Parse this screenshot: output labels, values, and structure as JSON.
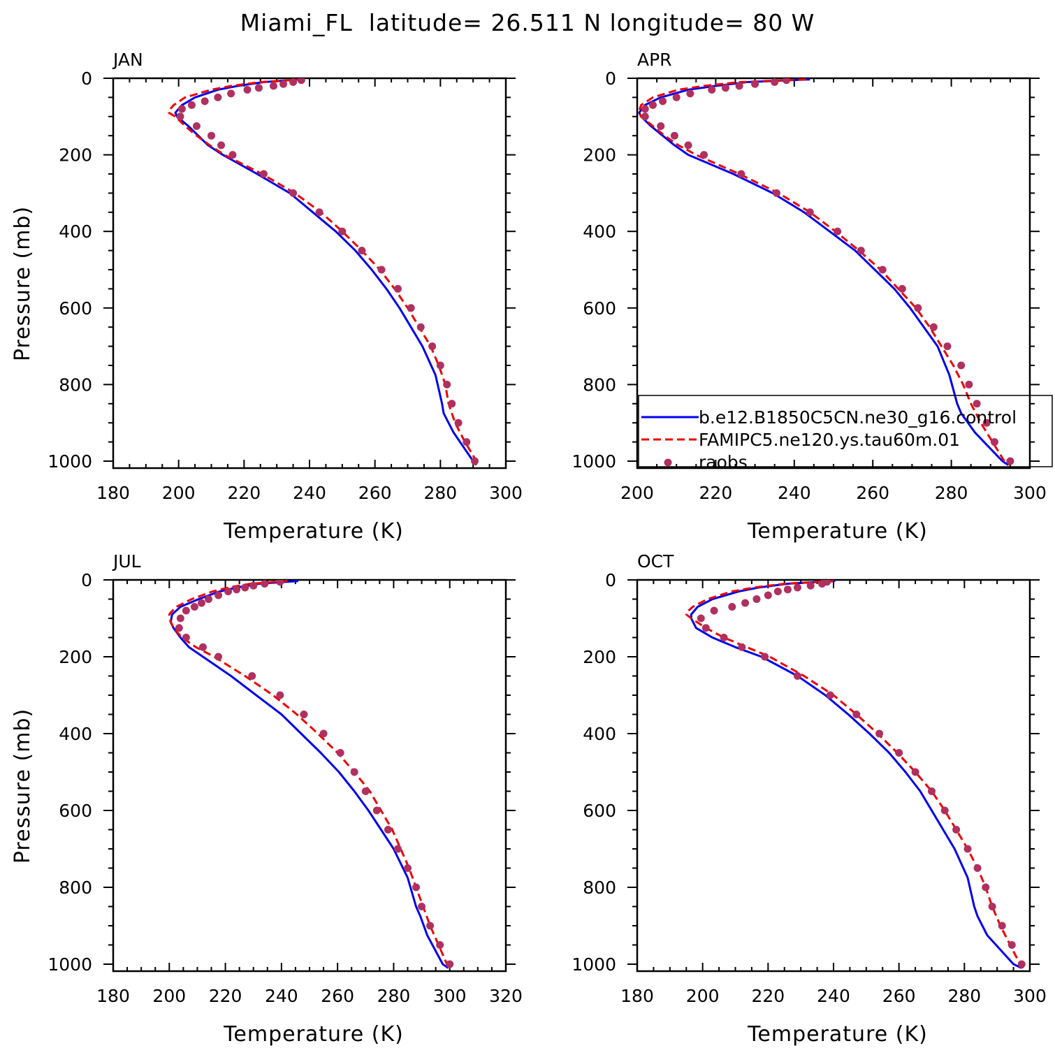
{
  "figure": {
    "title": "Miami_FL  latitude= 26.511 N longitude= 80 W"
  },
  "colors": {
    "model1": "#0000ee",
    "model2": "#ee0000",
    "obs": "#b03060"
  },
  "chart_data": [
    {
      "type": "line",
      "panel": "JAN",
      "xlabel": "Temperature (K)",
      "ylabel": "Pressure (mb)",
      "xlim": [
        180,
        300
      ],
      "ylim": [
        1000,
        0
      ],
      "xticks": [
        180,
        200,
        220,
        240,
        260,
        280,
        300
      ],
      "yticks": [
        0,
        200,
        400,
        600,
        800,
        1000
      ],
      "legend": null,
      "series": [
        {
          "name": "b.e12.B1850C5CN.ne30_g16.control",
          "style": "solid",
          "pressure": [
            3,
            10,
            20,
            30,
            50,
            70,
            90,
            100,
            125,
            150,
            175,
            200,
            250,
            300,
            350,
            400,
            450,
            500,
            550,
            600,
            650,
            700,
            775,
            850,
            875,
            925,
            1000,
            1010
          ],
          "temperature": [
            237.5,
            226,
            218,
            212,
            205,
            201,
            199,
            199.5,
            203,
            206,
            209,
            213.5,
            224,
            234,
            241,
            248,
            254,
            259,
            263.5,
            267.5,
            271,
            274.5,
            278.5,
            280.5,
            281,
            284,
            290,
            291
          ]
        },
        {
          "name": "FAMIPC5.ne120.ys.tau60m.01",
          "style": "dashed",
          "pressure": [
            3,
            10,
            20,
            30,
            50,
            70,
            85,
            90,
            100,
            125,
            150,
            175,
            200,
            250,
            300,
            350,
            400,
            450,
            500,
            550,
            600,
            650,
            700,
            750,
            800,
            850,
            900,
            950,
            1000,
            1010
          ],
          "temperature": [
            238,
            225,
            216,
            210,
            202,
            198.5,
            197,
            197,
            199,
            202,
            205.5,
            209.5,
            214,
            225.5,
            235.5,
            243.5,
            250,
            256,
            261.5,
            266,
            270,
            273.5,
            277,
            279.5,
            281.5,
            282.5,
            284.5,
            287.5,
            291,
            292
          ]
        },
        {
          "name": "raobs",
          "style": "points",
          "pressure": [
            5,
            10,
            15,
            20,
            25,
            30,
            40,
            50,
            60,
            70,
            80,
            100,
            125,
            150,
            175,
            200,
            250,
            300,
            350,
            400,
            450,
            500,
            550,
            600,
            650,
            700,
            750,
            800,
            850,
            900,
            950,
            1000
          ],
          "temperature": [
            237.5,
            235,
            232,
            229,
            224.5,
            221,
            216,
            212,
            208,
            204,
            201,
            200.5,
            205.5,
            210,
            213,
            216.5,
            226,
            235,
            243,
            250,
            256,
            262,
            267,
            271,
            274,
            277.5,
            280,
            282,
            283.5,
            285.5,
            288,
            290.5
          ]
        }
      ]
    },
    {
      "type": "line",
      "panel": "APR",
      "xlabel": "Temperature (K)",
      "ylabel": "",
      "xlim": [
        200,
        300
      ],
      "ylim": [
        1000,
        0
      ],
      "xticks": [
        200,
        220,
        240,
        260,
        280,
        300
      ],
      "yticks": [
        0,
        200,
        400,
        600,
        800,
        1000
      ],
      "legend": "lower-right",
      "series": [
        {
          "name": "b.e12.B1850C5CN.ne30_g16.control",
          "style": "solid",
          "pressure": [
            3,
            10,
            20,
            30,
            50,
            70,
            90,
            100,
            125,
            150,
            175,
            200,
            250,
            300,
            350,
            400,
            450,
            500,
            550,
            600,
            650,
            700,
            775,
            850,
            875,
            925,
            1000,
            1010
          ],
          "temperature": [
            244,
            228,
            220,
            213,
            206,
            202,
            200.5,
            201,
            203.5,
            206.5,
            209.5,
            213,
            224.5,
            234.5,
            242.5,
            249,
            255.5,
            260.5,
            265.5,
            269.5,
            273,
            276.5,
            279.5,
            281.5,
            282.5,
            286,
            293,
            294.5
          ]
        },
        {
          "name": "FAMIPC5.ne120.ys.tau60m.01",
          "style": "dashed",
          "pressure": [
            3,
            10,
            20,
            30,
            50,
            70,
            85,
            90,
            100,
            125,
            150,
            175,
            200,
            250,
            300,
            350,
            400,
            450,
            500,
            550,
            600,
            650,
            700,
            750,
            800,
            850,
            900,
            950,
            1000,
            1010
          ],
          "temperature": [
            243,
            226,
            217,
            210.5,
            204,
            201,
            200.5,
            200.5,
            201,
            204,
            207,
            210.5,
            215,
            226,
            236,
            244,
            250.5,
            256.5,
            262,
            266.5,
            271,
            274.5,
            277.5,
            280.5,
            283,
            285,
            287.5,
            290.5,
            293.5,
            295
          ]
        },
        {
          "name": "raobs",
          "style": "points",
          "pressure": [
            5,
            10,
            15,
            20,
            25,
            30,
            40,
            50,
            60,
            70,
            80,
            100,
            125,
            150,
            175,
            200,
            250,
            300,
            350,
            400,
            450,
            500,
            550,
            600,
            650,
            700,
            750,
            800,
            850,
            900,
            950,
            1000
          ],
          "temperature": [
            238,
            235,
            230,
            226,
            222.5,
            219,
            213.5,
            210,
            206.5,
            204,
            202,
            202,
            206,
            209.5,
            213,
            217,
            226.5,
            235.5,
            244,
            251,
            257,
            262.5,
            267.5,
            271.5,
            275.5,
            279,
            282.5,
            284.5,
            286.5,
            289,
            291,
            295
          ]
        }
      ]
    },
    {
      "type": "line",
      "panel": "JUL",
      "xlabel": "Temperature (K)",
      "ylabel": "Pressure (mb)",
      "xlim": [
        180,
        320
      ],
      "ylim": [
        1000,
        0
      ],
      "xticks": [
        180,
        200,
        220,
        240,
        260,
        280,
        300,
        320
      ],
      "yticks": [
        0,
        200,
        400,
        600,
        800,
        1000
      ],
      "legend": null,
      "series": [
        {
          "name": "b.e12.B1850C5CN.ne30_g16.control",
          "style": "solid",
          "pressure": [
            3,
            10,
            20,
            30,
            50,
            70,
            90,
            110,
            125,
            150,
            175,
            200,
            250,
            300,
            350,
            400,
            450,
            500,
            550,
            600,
            650,
            700,
            775,
            850,
            875,
            925,
            1000,
            1010
          ],
          "temperature": [
            246,
            232,
            224,
            218,
            210.5,
            204,
            201,
            200.5,
            201.5,
            204,
            207,
            212,
            222,
            231,
            240,
            247,
            254,
            260.5,
            266,
            271,
            275.5,
            280,
            285,
            288,
            289.5,
            292,
            297.5,
            299.5
          ]
        },
        {
          "name": "FAMIPC5.ne120.ys.tau60m.01",
          "style": "dashed",
          "pressure": [
            3,
            10,
            20,
            30,
            50,
            70,
            85,
            90,
            100,
            125,
            150,
            175,
            200,
            250,
            300,
            350,
            400,
            450,
            500,
            550,
            600,
            650,
            700,
            750,
            800,
            850,
            900,
            950,
            1000,
            1010
          ],
          "temperature": [
            242,
            229,
            221,
            215.5,
            208,
            202.5,
            200.5,
            200,
            200,
            201.5,
            204.5,
            209.5,
            216,
            227,
            237,
            245.5,
            253,
            260,
            266,
            271.5,
            275.5,
            279.5,
            282.5,
            285.5,
            288,
            290.5,
            293,
            296,
            299,
            300
          ]
        },
        {
          "name": "raobs",
          "style": "points",
          "pressure": [
            5,
            10,
            15,
            20,
            25,
            30,
            40,
            50,
            60,
            70,
            80,
            100,
            125,
            150,
            175,
            200,
            250,
            300,
            350,
            400,
            450,
            500,
            550,
            600,
            650,
            700,
            750,
            800,
            850,
            900,
            950,
            1000
          ],
          "temperature": [
            239.5,
            234,
            230,
            227,
            224,
            221,
            217.5,
            214,
            211.5,
            209,
            206,
            204,
            203.5,
            206,
            212,
            217.5,
            229.5,
            239.5,
            248,
            255,
            261,
            266,
            270,
            274,
            278,
            281.5,
            285,
            288,
            290,
            293,
            296.5,
            300
          ]
        }
      ]
    },
    {
      "type": "line",
      "panel": "OCT",
      "xlabel": "Temperature (K)",
      "ylabel": "",
      "xlim": [
        180,
        300
      ],
      "ylim": [
        1000,
        0
      ],
      "xticks": [
        180,
        200,
        220,
        240,
        260,
        280,
        300
      ],
      "yticks": [
        0,
        200,
        400,
        600,
        800,
        1000
      ],
      "legend": null,
      "series": [
        {
          "name": "b.e12.B1850C5CN.ne30_g16.control",
          "style": "solid",
          "pressure": [
            3,
            10,
            20,
            30,
            50,
            70,
            90,
            100,
            125,
            150,
            175,
            200,
            250,
            300,
            350,
            400,
            450,
            500,
            550,
            600,
            650,
            700,
            775,
            850,
            875,
            925,
            1000,
            1010
          ],
          "temperature": [
            240.5,
            226,
            217,
            211,
            203,
            198.5,
            196.5,
            196.5,
            198,
            203,
            210,
            218,
            229,
            237.5,
            244.5,
            251,
            257,
            262,
            266.5,
            270,
            273.5,
            277,
            281,
            283,
            284,
            287,
            295,
            297.5
          ]
        },
        {
          "name": "FAMIPC5.ne120.ys.tau60m.01",
          "style": "dashed",
          "pressure": [
            3,
            10,
            20,
            30,
            50,
            70,
            85,
            90,
            100,
            125,
            150,
            175,
            200,
            250,
            300,
            350,
            400,
            450,
            500,
            550,
            600,
            650,
            700,
            750,
            800,
            850,
            900,
            950,
            1000,
            1010
          ],
          "temperature": [
            240,
            225,
            215.5,
            209,
            201.5,
            197,
            195,
            195,
            196.5,
            201,
            206.5,
            213.5,
            220.5,
            231,
            240,
            247,
            253.5,
            259.5,
            265,
            270,
            274,
            277.5,
            281,
            284,
            286.5,
            288.5,
            291,
            294,
            297,
            298
          ]
        },
        {
          "name": "raobs",
          "style": "points",
          "pressure": [
            5,
            10,
            15,
            20,
            25,
            30,
            40,
            50,
            60,
            70,
            80,
            100,
            125,
            150,
            175,
            200,
            250,
            300,
            350,
            400,
            450,
            500,
            550,
            600,
            650,
            700,
            750,
            800,
            850,
            900,
            950,
            1000
          ],
          "temperature": [
            238,
            236.5,
            233,
            229,
            226,
            223,
            220,
            216.5,
            213,
            209,
            203.5,
            199.5,
            201,
            206.5,
            212,
            219,
            229,
            239,
            247,
            254,
            260,
            265,
            270,
            274,
            277.5,
            281,
            284,
            286.5,
            288.5,
            291.5,
            294.5,
            297.5
          ]
        }
      ]
    }
  ]
}
